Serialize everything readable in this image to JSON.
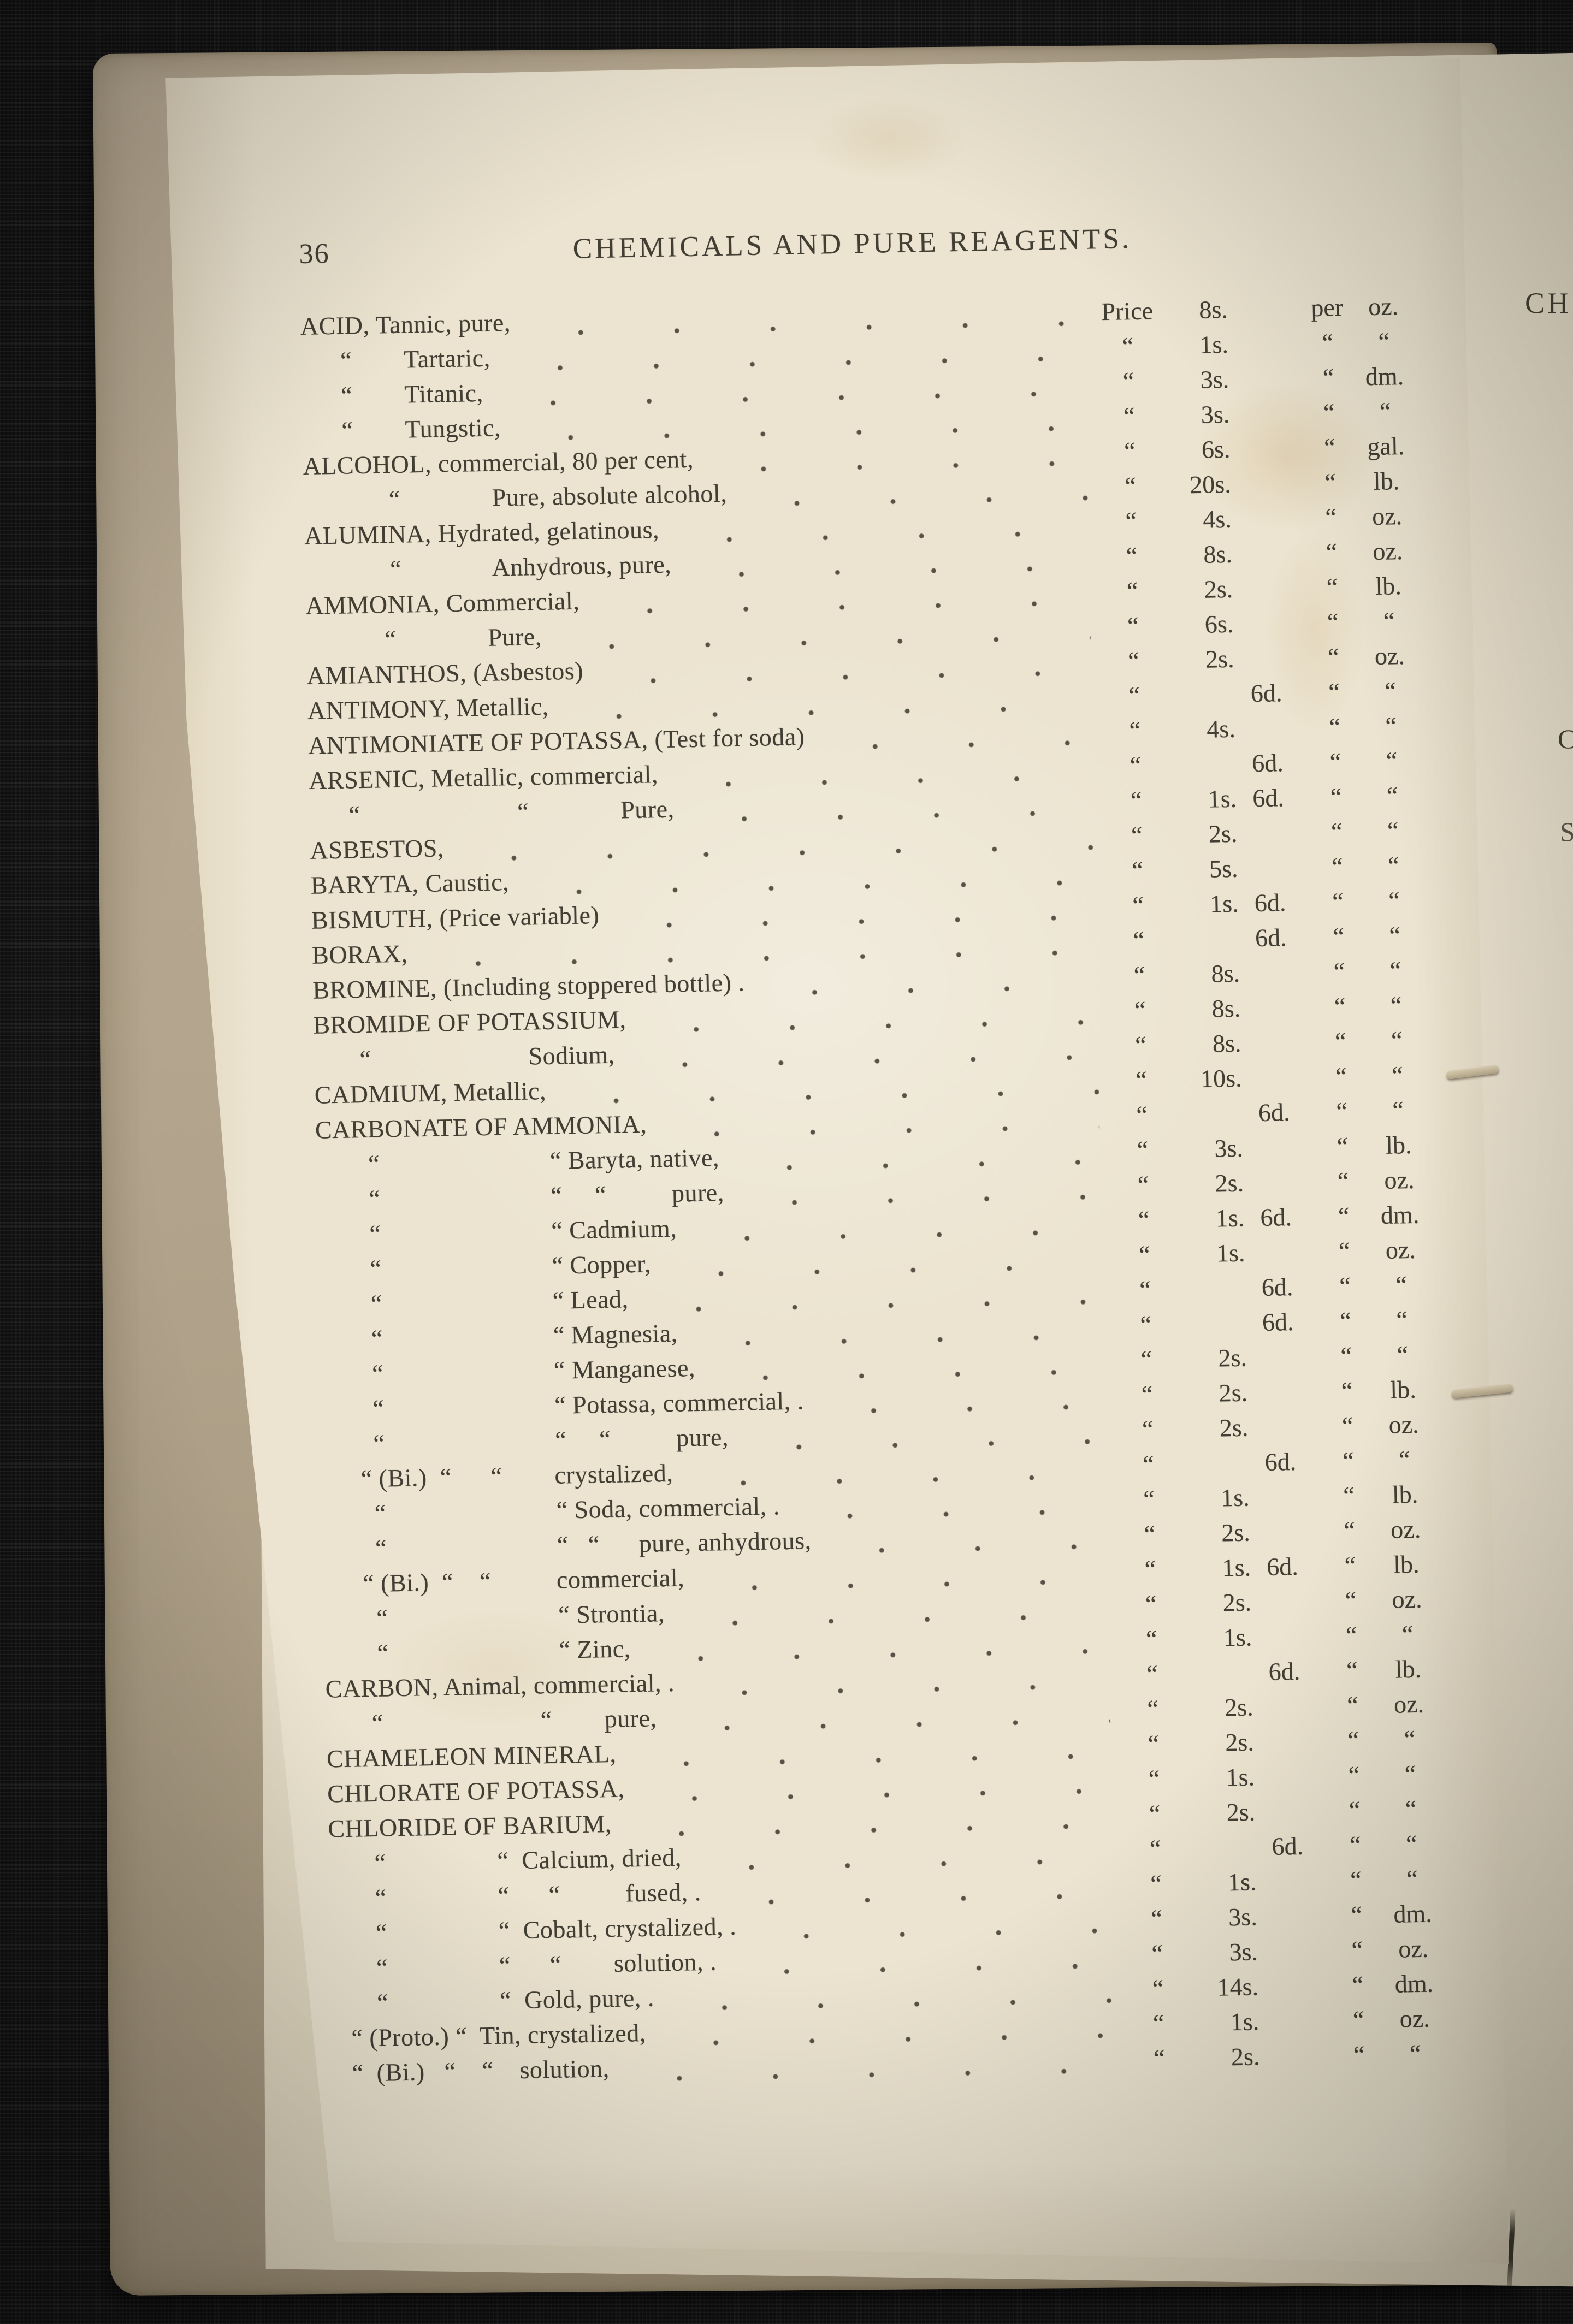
{
  "page": {
    "number": "36",
    "title": "CHEMICALS AND PURE REAGENTS.",
    "price_column_header": "Price",
    "per_column_header": "per",
    "ditto_mark": "“",
    "rows": [
      {
        "name": "ACID, Tannic, pure,",
        "price_col": "Price",
        "s": "8s.",
        "p": "",
        "per_col": "per",
        "unit": "oz."
      },
      {
        "name": "      “        Tartaric,",
        "s": "1s.",
        "p": "",
        "unit": "“"
      },
      {
        "name": "      “        Titanic,",
        "s": "3s.",
        "p": "",
        "unit": "dm."
      },
      {
        "name": "      “        Tungstic,",
        "s": "3s.",
        "p": "",
        "unit": "“"
      },
      {
        "name": "ALCOHOL, commercial, 80 per cent,",
        "s": "6s.",
        "p": "",
        "unit": "gal."
      },
      {
        "name": "             “              Pure, absolute alcohol,",
        "s": "20s.",
        "p": "",
        "unit": "lb."
      },
      {
        "name": "ALUMINA, Hydrated, gelatinous,",
        "s": "4s.",
        "p": "",
        "unit": "oz."
      },
      {
        "name": "             “              Anhydrous, pure,",
        "s": "8s.",
        "p": "",
        "unit": "oz."
      },
      {
        "name": "AMMONIA, Commercial,",
        "s": "2s.",
        "p": "",
        "unit": "lb."
      },
      {
        "name": "            “              Pure,",
        "s": "6s.",
        "p": "",
        "unit": "“"
      },
      {
        "name": "AMIANTHOS, (Asbestos)",
        "s": "2s.",
        "p": "",
        "unit": "oz."
      },
      {
        "name": "ANTIMONY, Metallic,",
        "s": "",
        "p": "6d.",
        "unit": "“"
      },
      {
        "name": "ANTIMONIATE OF POTASSA, (Test for soda)",
        "s": "4s.",
        "p": "",
        "unit": "“"
      },
      {
        "name": "ARSENIC, Metallic, commercial,",
        "s": "",
        "p": "6d.",
        "unit": "“"
      },
      {
        "name": "      “                        “              Pure,",
        "s": "1s.",
        "p": "6d.",
        "unit": "“"
      },
      {
        "name": "ASBESTOS,",
        "s": "2s.",
        "p": "",
        "unit": "“"
      },
      {
        "name": "BARYTA, Caustic,",
        "s": "5s.",
        "p": "",
        "unit": "“"
      },
      {
        "name": "BISMUTH, (Price variable)",
        "s": "1s.",
        "p": "6d.",
        "unit": "“"
      },
      {
        "name": "BORAX,",
        "s": "",
        "p": "6d.",
        "unit": "“"
      },
      {
        "name": "BROMINE, (Including stoppered bottle) .",
        "s": "8s.",
        "p": "",
        "unit": "“"
      },
      {
        "name": "BROMIDE OF POTASSIUM,",
        "s": "8s.",
        "p": "",
        "unit": "“"
      },
      {
        "name": "       “                        Sodium,",
        "s": "8s.",
        "p": "",
        "unit": "“"
      },
      {
        "name": "CADMIUM, Metallic,",
        "s": "10s.",
        "p": "",
        "unit": "“"
      },
      {
        "name": "CARBONATE OF AMMONIA,",
        "s": "",
        "p": "6d.",
        "unit": "“"
      },
      {
        "name": "        “                          “ Baryta, native,",
        "s": "3s.",
        "p": "",
        "unit": "lb."
      },
      {
        "name": "        “                          “     “          pure,",
        "s": "2s.",
        "p": "",
        "unit": "oz."
      },
      {
        "name": "        “                          “ Cadmium,",
        "s": "1s.",
        "p": "6d.",
        "unit": "dm."
      },
      {
        "name": "        “                          “ Copper,",
        "s": "1s.",
        "p": "",
        "unit": "oz."
      },
      {
        "name": "        “                          “ Lead,",
        "s": "",
        "p": "6d.",
        "unit": "“"
      },
      {
        "name": "        “                          “ Magnesia,",
        "s": "",
        "p": "6d.",
        "unit": "“"
      },
      {
        "name": "        “                          “ Manganese,",
        "s": "2s.",
        "p": "",
        "unit": "“"
      },
      {
        "name": "        “                          “ Potassa, commercial, .",
        "s": "2s.",
        "p": "",
        "unit": "lb."
      },
      {
        "name": "        “                          “     “          pure,",
        "s": "2s.",
        "p": "",
        "unit": "oz."
      },
      {
        "name": "      “ (Bi.)  “      “        crystalized,",
        "s": "",
        "p": "6d.",
        "unit": "“"
      },
      {
        "name": "        “                          “ Soda, commercial, .",
        "s": "1s.",
        "p": "",
        "unit": "lb."
      },
      {
        "name": "        “                          “   “      pure, anhydrous,",
        "s": "2s.",
        "p": "",
        "unit": "oz."
      },
      {
        "name": "      “ (Bi.)  “    “          commercial,",
        "s": "1s.",
        "p": "6d.",
        "unit": "lb."
      },
      {
        "name": "        “                          “ Strontia,",
        "s": "2s.",
        "p": "",
        "unit": "oz."
      },
      {
        "name": "        “                          “ Zinc,",
        "s": "1s.",
        "p": "",
        "unit": "“"
      },
      {
        "name": "CARBON, Animal, commercial, .",
        "s": "",
        "p": "6d.",
        "unit": "lb."
      },
      {
        "name": "       “                        “        pure,",
        "s": "2s.",
        "p": "",
        "unit": "oz."
      },
      {
        "name": "CHAMELEON MINERAL,",
        "s": "2s.",
        "p": "",
        "unit": "“"
      },
      {
        "name": "CHLORATE OF POTASSA,",
        "s": "1s.",
        "p": "",
        "unit": "“"
      },
      {
        "name": "CHLORIDE OF BARIUM,",
        "s": "2s.",
        "p": "",
        "unit": "“"
      },
      {
        "name": "       “                 “  Calcium, dried,",
        "s": "",
        "p": "6d.",
        "unit": "“"
      },
      {
        "name": "       “                 “      “          fused, .",
        "s": "1s.",
        "p": "",
        "unit": "“"
      },
      {
        "name": "       “                 “  Cobalt, crystalized, .",
        "s": "3s.",
        "p": "",
        "unit": "dm."
      },
      {
        "name": "       “                 “      “        solution, .",
        "s": "3s.",
        "p": "",
        "unit": "oz."
      },
      {
        "name": "       “                 “  Gold, pure, .",
        "s": "14s.",
        "p": "",
        "unit": "dm."
      },
      {
        "name": "   “ (Proto.) “  Tin, crystalized,",
        "s": "1s.",
        "p": "",
        "unit": "oz."
      },
      {
        "name": "   “  (Bi.)   “    “    solution,",
        "s": "2s.",
        "p": "",
        "unit": "“"
      }
    ]
  },
  "next_page": {
    "header_fragment": "CH",
    "fragment_2": "C",
    "fragment_3": "S"
  }
}
